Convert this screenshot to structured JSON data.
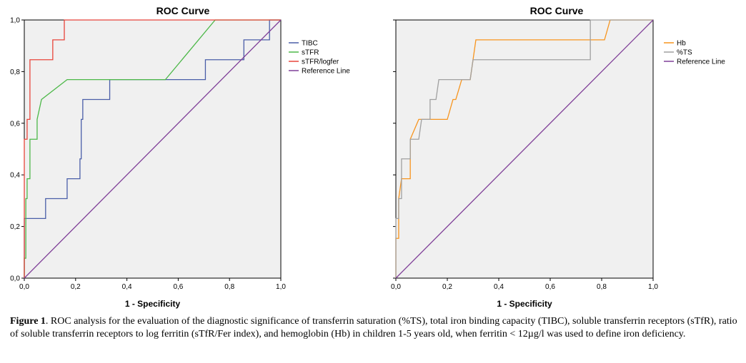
{
  "caption": {
    "label": "Figure 1",
    "text": ". ROC analysis for the evaluation of the diagnostic significance of transferrin saturation (%TS), total iron binding capacity (TIBC), soluble transferrin receptors (sTfR), ratio of soluble transferrin receptors to log ferritin (sTfR/Fer index), and hemoglobin (Hb) in children 1-5 years old, when ferritin < 12µg/l was used to define iron deficiency."
  },
  "chart_data": [
    {
      "type": "line",
      "title": "ROC Curve",
      "xlabel": "1 - Specificity",
      "ylabel": "",
      "xlim": [
        0,
        1
      ],
      "ylim": [
        0,
        1
      ],
      "grid": false,
      "legend": "right",
      "xticks": [
        "0,0",
        "0,2",
        "0,4",
        "0,6",
        "0,8",
        "1,0"
      ],
      "yticks": [
        "0,0",
        "0,2",
        "0,4",
        "0,6",
        "0,8",
        "1,0"
      ],
      "series": [
        {
          "name": "TIBC",
          "color": "#4a5ea8",
          "points": [
            [
              0,
              0
            ],
            [
              0,
              0.231
            ],
            [
              0.083,
              0.231
            ],
            [
              0.083,
              0.308
            ],
            [
              0.167,
              0.308
            ],
            [
              0.167,
              0.385
            ],
            [
              0.217,
              0.385
            ],
            [
              0.217,
              0.462
            ],
            [
              0.222,
              0.462
            ],
            [
              0.222,
              0.615
            ],
            [
              0.228,
              0.615
            ],
            [
              0.228,
              0.692
            ],
            [
              0.333,
              0.692
            ],
            [
              0.333,
              0.769
            ],
            [
              0.706,
              0.769
            ],
            [
              0.706,
              0.846
            ],
            [
              0.856,
              0.846
            ],
            [
              0.856,
              0.923
            ],
            [
              0.956,
              0.923
            ],
            [
              0.956,
              1
            ],
            [
              1,
              1
            ]
          ]
        },
        {
          "name": "sTFR",
          "color": "#4cb848",
          "points": [
            [
              0,
              0
            ],
            [
              0,
              0.077
            ],
            [
              0.006,
              0.077
            ],
            [
              0.006,
              0.308
            ],
            [
              0.011,
              0.308
            ],
            [
              0.011,
              0.385
            ],
            [
              0.022,
              0.385
            ],
            [
              0.022,
              0.538
            ],
            [
              0.05,
              0.538
            ],
            [
              0.05,
              0.615
            ],
            [
              0.067,
              0.692
            ],
            [
              0.167,
              0.769
            ],
            [
              0.55,
              0.769
            ],
            [
              0.744,
              1
            ],
            [
              1,
              1
            ]
          ]
        },
        {
          "name": "sTFR/logfer",
          "color": "#e8443a",
          "points": [
            [
              0,
              0
            ],
            [
              0,
              0.538
            ],
            [
              0.011,
              0.538
            ],
            [
              0.011,
              0.615
            ],
            [
              0.022,
              0.615
            ],
            [
              0.022,
              0.846
            ],
            [
              0.111,
              0.846
            ],
            [
              0.111,
              0.923
            ],
            [
              0.156,
              0.923
            ],
            [
              0.156,
              1
            ],
            [
              1,
              1
            ]
          ]
        },
        {
          "name": "Reference Line",
          "color": "#7f3f98",
          "points": [
            [
              0,
              0
            ],
            [
              1,
              1
            ]
          ]
        }
      ]
    },
    {
      "type": "line",
      "title": "ROC Curve",
      "xlabel": "1 - Specificity",
      "ylabel": "",
      "xlim": [
        0,
        1
      ],
      "ylim": [
        0,
        1
      ],
      "grid": false,
      "legend": "right",
      "xticks": [
        "0,0",
        "0,2",
        "0,4",
        "0,6",
        "0,8",
        "1,0"
      ],
      "yticks": [
        "",
        "",
        "",
        "",
        "",
        ""
      ],
      "series": [
        {
          "name": "Hb",
          "color": "#f7941d",
          "points": [
            [
              0,
              0
            ],
            [
              0,
              0.154
            ],
            [
              0.011,
              0.154
            ],
            [
              0.011,
              0.308
            ],
            [
              0.022,
              0.385
            ],
            [
              0.056,
              0.385
            ],
            [
              0.056,
              0.538
            ],
            [
              0.089,
              0.615
            ],
            [
              0.2,
              0.615
            ],
            [
              0.222,
              0.692
            ],
            [
              0.233,
              0.692
            ],
            [
              0.256,
              0.769
            ],
            [
              0.289,
              0.769
            ],
            [
              0.311,
              0.923
            ],
            [
              0.811,
              0.923
            ],
            [
              0.833,
              1
            ],
            [
              1,
              1
            ]
          ]
        },
        {
          "name": "%TS",
          "color": "#a0a0a0",
          "points": [
            [
              0,
              0
            ],
            [
              0,
              0.231
            ],
            [
              0.011,
              0.231
            ],
            [
              0.011,
              0.308
            ],
            [
              0.022,
              0.308
            ],
            [
              0.022,
              0.462
            ],
            [
              0.056,
              0.462
            ],
            [
              0.056,
              0.538
            ],
            [
              0.089,
              0.538
            ],
            [
              0.1,
              0.615
            ],
            [
              0.133,
              0.615
            ],
            [
              0.133,
              0.692
            ],
            [
              0.156,
              0.692
            ],
            [
              0.167,
              0.769
            ],
            [
              0.289,
              0.769
            ],
            [
              0.3,
              0.846
            ],
            [
              0.756,
              0.846
            ],
            [
              0.756,
              1
            ],
            [
              1,
              1
            ]
          ]
        },
        {
          "name": "Reference Line",
          "color": "#7f3f98",
          "points": [
            [
              0,
              0
            ],
            [
              1,
              1
            ]
          ]
        }
      ]
    }
  ]
}
